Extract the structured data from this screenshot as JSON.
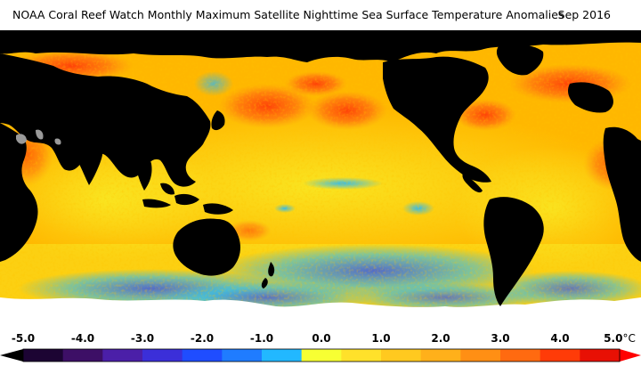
{
  "title": "NOAA Coral Reef Watch Monthly Maximum Satellite Nighttime Sea Surface Temperature Anomalies",
  "date": "Sep 2016",
  "legend": {
    "ticks": [
      "-5.0",
      "-4.0",
      "-3.0",
      "-2.0",
      "-1.0",
      "0.0",
      "1.0",
      "2.0",
      "3.0",
      "4.0",
      "5.0"
    ],
    "unit": "°C",
    "colors": [
      "#1c0433",
      "#3d0f66",
      "#4b1fa8",
      "#3b2fd9",
      "#1f4dff",
      "#1f7cff",
      "#22b8ff",
      "#f7ff33",
      "#ffe12a",
      "#ffc91f",
      "#ffb01a",
      "#ff8f14",
      "#ff6a10",
      "#ff3b08",
      "#e81004"
    ]
  },
  "map_colors": {
    "land": "#000000",
    "ice": "#ffffff",
    "lake": "#9a9a9a",
    "neutral": "#f2e200",
    "warm": "#ffb700",
    "hot": "#ff5a12",
    "cool": "#22b8ff",
    "cold": "#1f4dff"
  }
}
